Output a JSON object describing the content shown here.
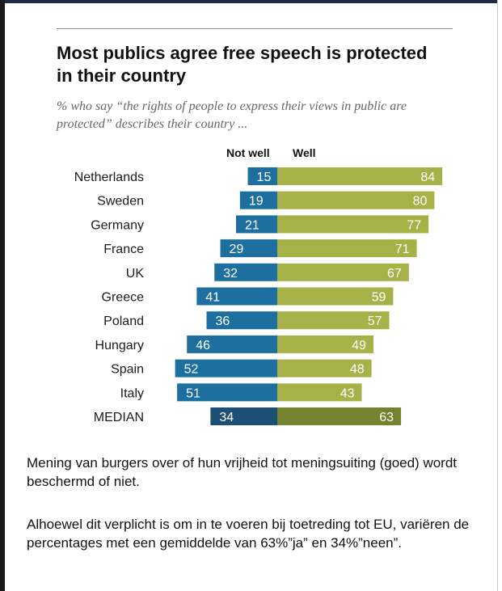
{
  "title": "Most publics agree free speech is protected in their country",
  "subtitle": "% who say “the rights of people to express their views in public are protected” describes their country ...",
  "column_headers": {
    "not_well": "Not well",
    "well": "Well"
  },
  "colors": {
    "not_well": "#1d6fa0",
    "well": "#a6b247",
    "median_not_well": "#1c4f74",
    "median_well": "#748330"
  },
  "chart_data": {
    "type": "bar",
    "categories": [
      "Netherlands",
      "Sweden",
      "Germany",
      "France",
      "UK",
      "Greece",
      "Poland",
      "Hungary",
      "Spain",
      "Italy",
      "MEDIAN"
    ],
    "series": [
      {
        "name": "Not well",
        "values": [
          15,
          19,
          21,
          29,
          32,
          41,
          36,
          46,
          52,
          51,
          34
        ]
      },
      {
        "name": "Well",
        "values": [
          84,
          80,
          77,
          71,
          67,
          59,
          57,
          49,
          48,
          43,
          63
        ]
      }
    ],
    "title": "Most publics agree free speech is protected in their country",
    "xlabel": "",
    "ylabel": "",
    "orientation": "horizontal-diverging",
    "grid": false
  },
  "caption": {
    "paragraph1": "Mening van burgers over of hun vrijheid tot meningsuiting (goed) wordt beschermd of niet.",
    "paragraph2": "Alhoewel dit verplicht is om in te voeren bij toetreding tot EU, variëren de percentages met een gemiddelde van 63%”ja” en 34%”neen”."
  }
}
